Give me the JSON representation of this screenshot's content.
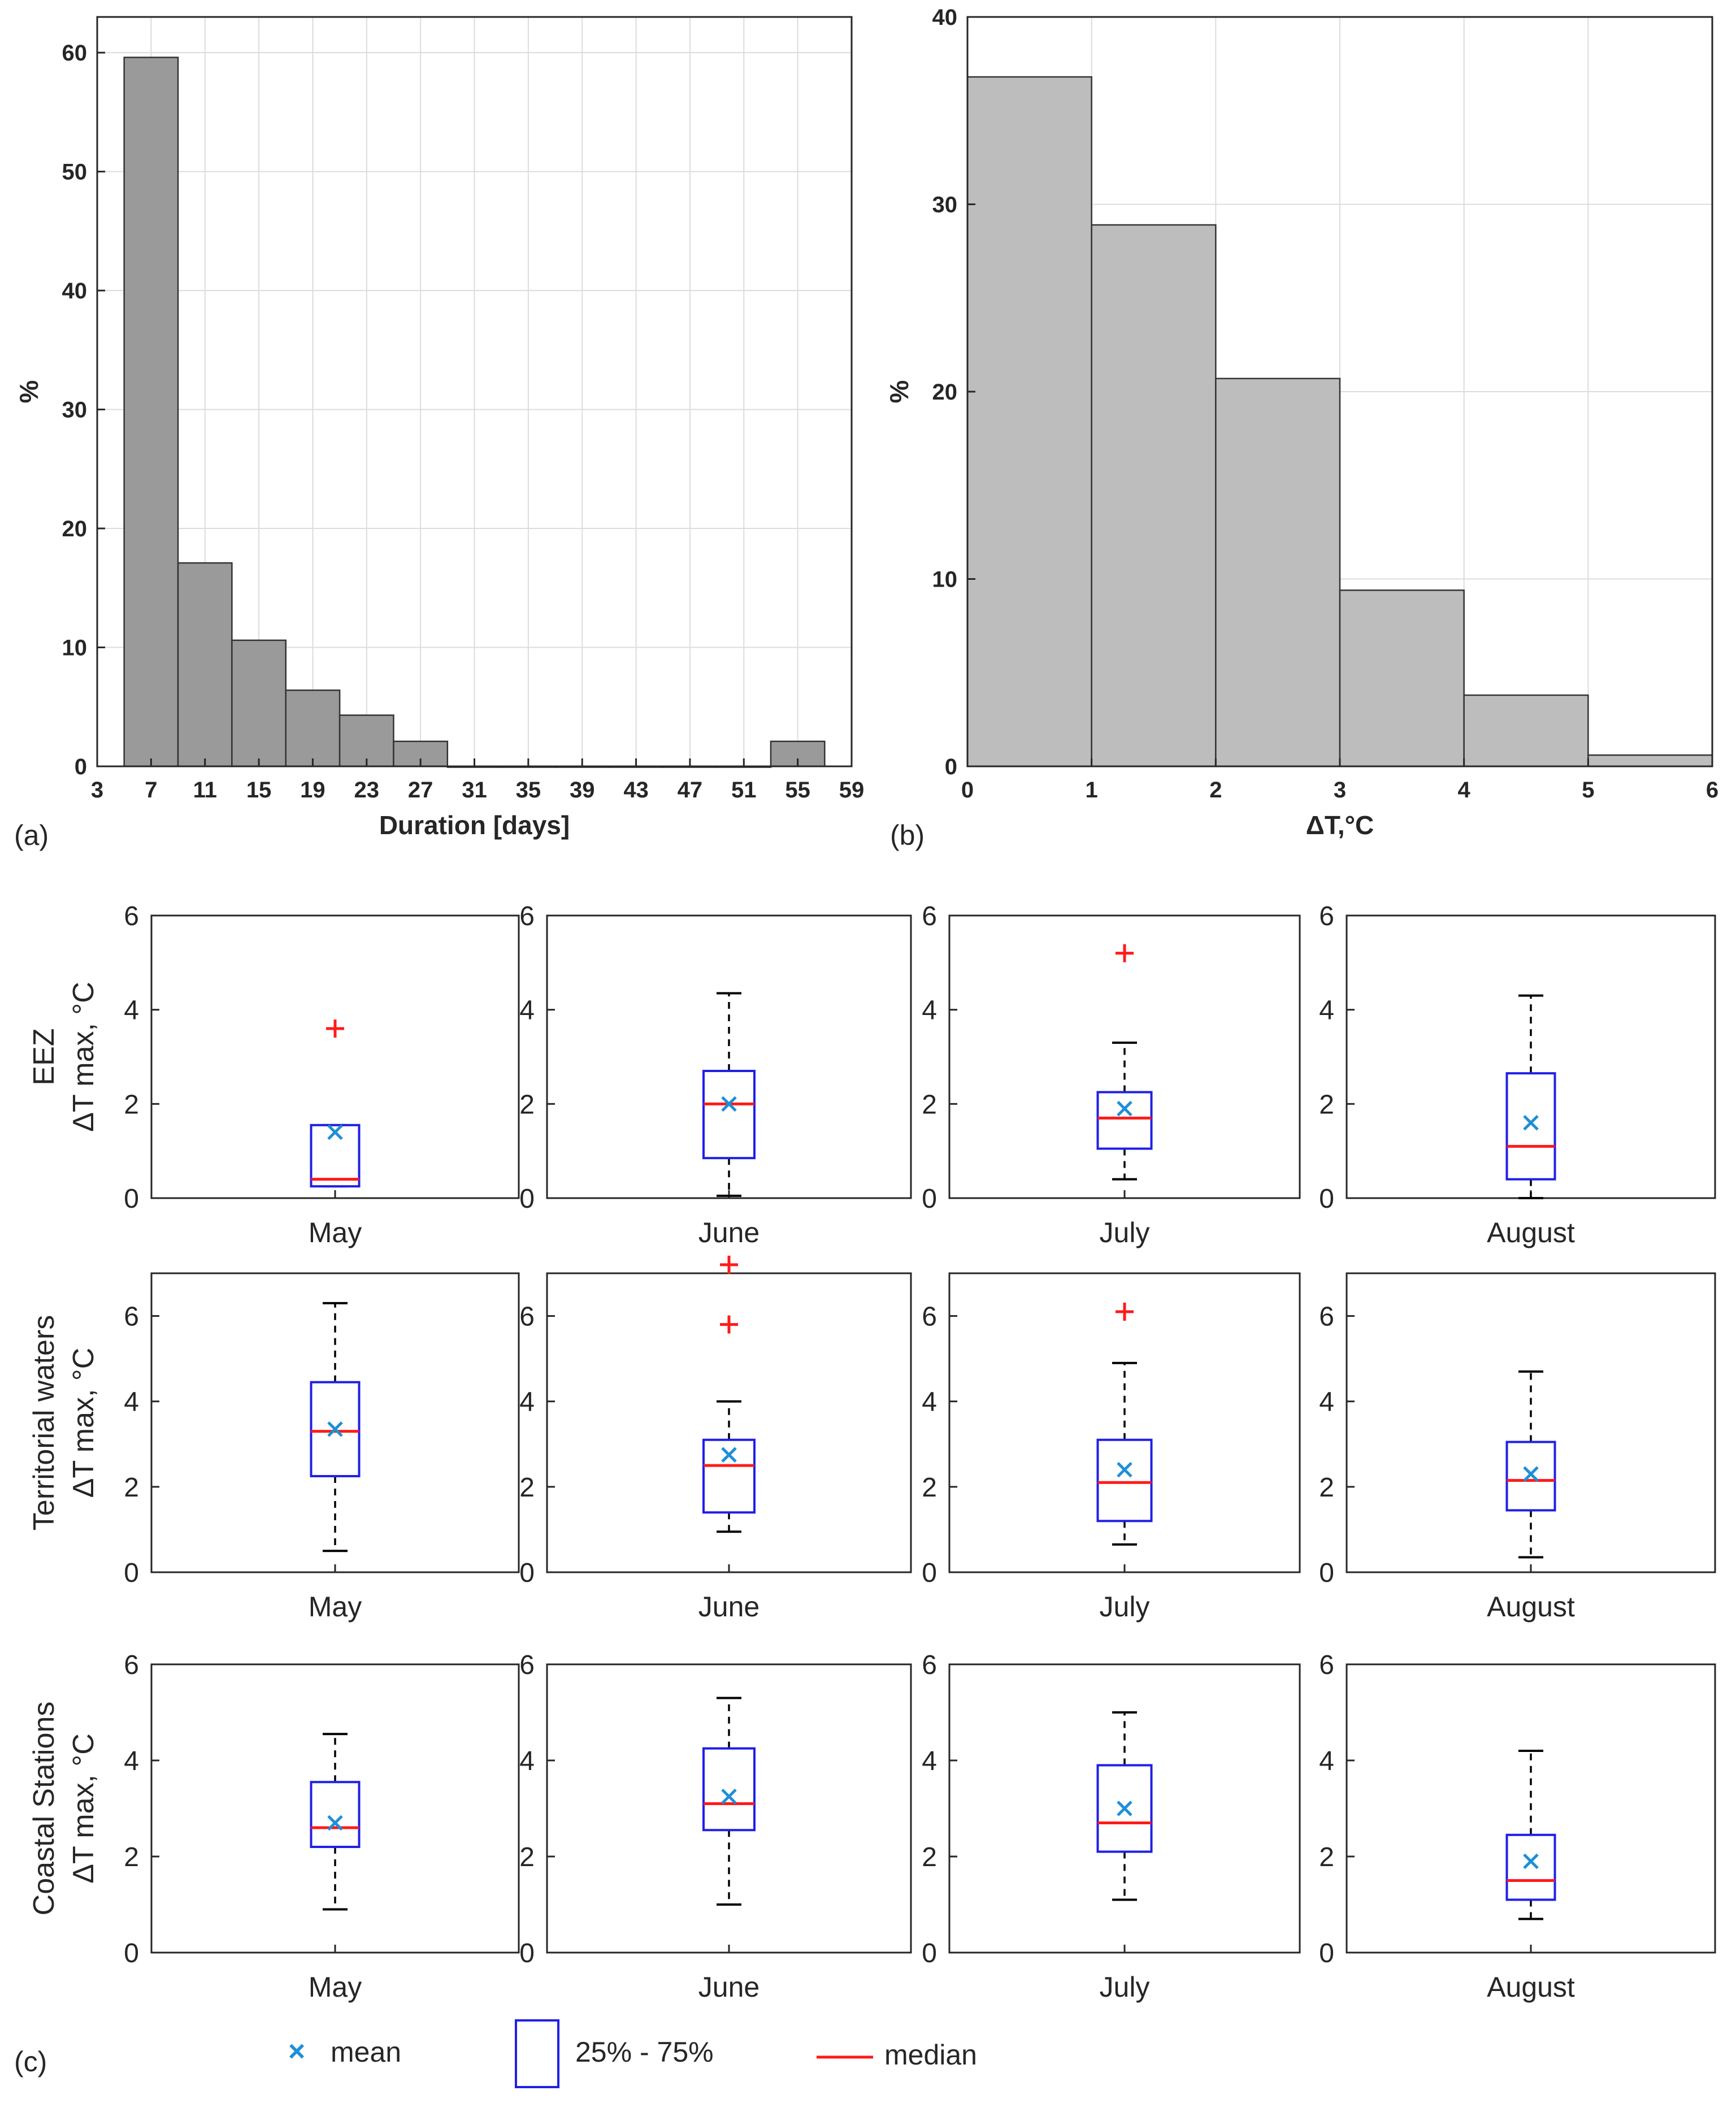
{
  "panel_labels": {
    "a": "(a)",
    "b": "(b)",
    "c": "(c)"
  },
  "colors": {
    "bar_a": "#9a9a9a",
    "bar_b": "#bdbdbd",
    "box": "#1f1fe8",
    "median": "#ff1a1a",
    "mean": "#1e8fd6",
    "outlier": "#ff1a1a",
    "whisker": "#000000",
    "grid": "#dcdcdc"
  },
  "chart_data": [
    {
      "id": "a",
      "type": "bar",
      "title": "",
      "xlabel": "Duration [days]",
      "ylabel": "%",
      "xlim": [
        3,
        59
      ],
      "ylim": [
        0,
        63
      ],
      "xticks": [
        3,
        7,
        11,
        15,
        19,
        23,
        27,
        31,
        35,
        39,
        43,
        47,
        51,
        55,
        59
      ],
      "yticks": [
        0,
        10,
        20,
        30,
        40,
        50,
        60
      ],
      "bin_width": 4,
      "bins": [
        {
          "center": 7,
          "value": 59.6
        },
        {
          "center": 11,
          "value": 17.1
        },
        {
          "center": 15,
          "value": 10.6
        },
        {
          "center": 19,
          "value": 6.4
        },
        {
          "center": 23,
          "value": 4.3
        },
        {
          "center": 27,
          "value": 2.1
        },
        {
          "center": 31,
          "value": 0
        },
        {
          "center": 35,
          "value": 0
        },
        {
          "center": 39,
          "value": 0
        },
        {
          "center": 43,
          "value": 0
        },
        {
          "center": 47,
          "value": 0
        },
        {
          "center": 51,
          "value": 0
        },
        {
          "center": 55,
          "value": 2.1
        }
      ],
      "grid": true
    },
    {
      "id": "b",
      "type": "bar",
      "title": "",
      "xlabel": "ΔT,°C",
      "ylabel": "%",
      "xlim": [
        0,
        6
      ],
      "ylim": [
        0,
        40
      ],
      "xticks": [
        0,
        1,
        2,
        3,
        4,
        5,
        6
      ],
      "yticks": [
        0,
        10,
        20,
        30,
        40
      ],
      "bins": [
        {
          "from": 0,
          "to": 1,
          "value": 36.8
        },
        {
          "from": 1,
          "to": 2,
          "value": 28.9
        },
        {
          "from": 2,
          "to": 3,
          "value": 20.7
        },
        {
          "from": 3,
          "to": 4,
          "value": 9.4
        },
        {
          "from": 4,
          "to": 5,
          "value": 3.8
        },
        {
          "from": 5,
          "to": 6,
          "value": 0.6
        }
      ],
      "grid": true
    },
    {
      "id": "c",
      "type": "box",
      "row_labels": [
        {
          "line1": "EEZ",
          "line2": "ΔT max, °C"
        },
        {
          "line1": "Territorial waters",
          "line2": "ΔT max, °C"
        },
        {
          "line1": "Coastal Stations",
          "line2": "ΔT max, °C"
        }
      ],
      "months": [
        "May",
        "June",
        "July",
        "August"
      ],
      "legend": {
        "mean": "mean",
        "box": "25% - 75%",
        "median": "median"
      },
      "rows": [
        {
          "ylim": [
            0,
            6
          ],
          "yticks": [
            0,
            2,
            4,
            6
          ],
          "boxes": [
            {
              "month": "May",
              "q1": 0.25,
              "q3": 1.55,
              "median": 0.4,
              "mean": 1.4,
              "whisker_low": 0.25,
              "whisker_high": 1.55,
              "outliers": [
                3.6
              ]
            },
            {
              "month": "June",
              "q1": 0.85,
              "q3": 2.7,
              "median": 2.0,
              "mean": 2.0,
              "whisker_low": 0.05,
              "whisker_high": 4.35,
              "outliers": []
            },
            {
              "month": "July",
              "q1": 1.05,
              "q3": 2.25,
              "median": 1.7,
              "mean": 1.9,
              "whisker_low": 0.4,
              "whisker_high": 3.3,
              "outliers": [
                5.2
              ]
            },
            {
              "month": "August",
              "q1": 0.4,
              "q3": 2.65,
              "median": 1.1,
              "mean": 1.6,
              "whisker_low": 0.0,
              "whisker_high": 4.3,
              "outliers": []
            }
          ]
        },
        {
          "ylim": [
            0,
            7
          ],
          "yticks": [
            0,
            2,
            4,
            6
          ],
          "boxes": [
            {
              "month": "May",
              "q1": 2.25,
              "q3": 4.45,
              "median": 3.3,
              "mean": 3.35,
              "whisker_low": 0.5,
              "whisker_high": 6.3,
              "outliers": []
            },
            {
              "month": "June",
              "q1": 1.4,
              "q3": 3.1,
              "median": 2.5,
              "mean": 2.75,
              "whisker_low": 0.95,
              "whisker_high": 4.0,
              "outliers": [
                5.8,
                7.2
              ]
            },
            {
              "month": "July",
              "q1": 1.2,
              "q3": 3.1,
              "median": 2.1,
              "mean": 2.4,
              "whisker_low": 0.65,
              "whisker_high": 4.9,
              "outliers": [
                6.1
              ]
            },
            {
              "month": "August",
              "q1": 1.45,
              "q3": 3.05,
              "median": 2.15,
              "mean": 2.3,
              "whisker_low": 0.35,
              "whisker_high": 4.7,
              "outliers": []
            }
          ]
        },
        {
          "ylim": [
            0,
            6
          ],
          "yticks": [
            0,
            2,
            4,
            6
          ],
          "boxes": [
            {
              "month": "May",
              "q1": 2.2,
              "q3": 3.55,
              "median": 2.6,
              "mean": 2.7,
              "whisker_low": 0.9,
              "whisker_high": 4.55,
              "outliers": []
            },
            {
              "month": "June",
              "q1": 2.55,
              "q3": 4.25,
              "median": 3.1,
              "mean": 3.25,
              "whisker_low": 1.0,
              "whisker_high": 5.3,
              "outliers": []
            },
            {
              "month": "July",
              "q1": 2.1,
              "q3": 3.9,
              "median": 2.7,
              "mean": 3.0,
              "whisker_low": 1.1,
              "whisker_high": 5.0,
              "outliers": []
            },
            {
              "month": "August",
              "q1": 1.1,
              "q3": 2.45,
              "median": 1.5,
              "mean": 1.9,
              "whisker_low": 0.7,
              "whisker_high": 4.2,
              "outliers": []
            }
          ]
        }
      ]
    }
  ]
}
